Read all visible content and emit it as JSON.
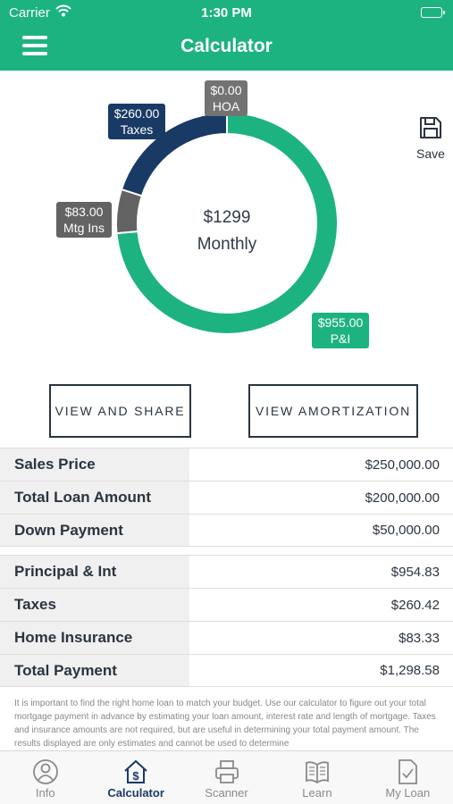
{
  "status_bar": {
    "carrier": "Carrier",
    "time": "1:30 PM"
  },
  "header": {
    "title": "Calculator"
  },
  "chart_data": {
    "type": "pie",
    "center_amount": "$1299",
    "center_label": "Monthly",
    "slices": [
      {
        "name": "P&I",
        "value": 955.0,
        "label": "$955.00",
        "color": "#1db380"
      },
      {
        "name": "Mtg Ins",
        "value": 83.0,
        "label": "$83.00",
        "color": "#636363"
      },
      {
        "name": "Taxes",
        "value": 260.0,
        "label": "$260.00",
        "color": "#1a3a66"
      },
      {
        "name": "HOA",
        "value": 0.0,
        "label": "$0.00",
        "color": "#737373"
      }
    ]
  },
  "save": {
    "label": "Save",
    "icon": "floppy-disk-icon"
  },
  "buttons": {
    "share": "VIEW AND SHARE",
    "amortization": "VIEW AMORTIZATION"
  },
  "loan_table": [
    {
      "label": "Sales Price",
      "value": "$250,000.00"
    },
    {
      "label": "Total Loan Amount",
      "value": "$200,000.00"
    },
    {
      "label": "Down Payment",
      "value": "$50,000.00"
    }
  ],
  "payment_table": [
    {
      "label": "Principal & Int",
      "value": "$954.83"
    },
    {
      "label": "Taxes",
      "value": "$260.42"
    },
    {
      "label": "Home Insurance",
      "value": "$83.33"
    },
    {
      "label": "Total Payment",
      "value": "$1,298.58"
    }
  ],
  "disclaimer": "It is important to find the right home loan to match your budget. Use our calculator to figure out your total mortgage payment in advance by estimating your loan amount, interest rate and length of mortgage. Taxes and insurance amounts are not required, but are useful in determining your total payment amount. The results displayed are only estimates and cannot be used to determine",
  "tabs": [
    {
      "label": "Info",
      "icon": "person-info-icon",
      "active": false
    },
    {
      "label": "Calculator",
      "icon": "house-dollar-icon",
      "active": true
    },
    {
      "label": "Scanner",
      "icon": "printer-icon",
      "active": false
    },
    {
      "label": "Learn",
      "icon": "open-book-icon",
      "active": false
    },
    {
      "label": "My Loan",
      "icon": "document-check-icon",
      "active": false
    }
  ],
  "colors": {
    "brand_green": "#1db380",
    "navy": "#1a3a66",
    "gray_dark": "#636363",
    "gray_hoa": "#737373"
  }
}
